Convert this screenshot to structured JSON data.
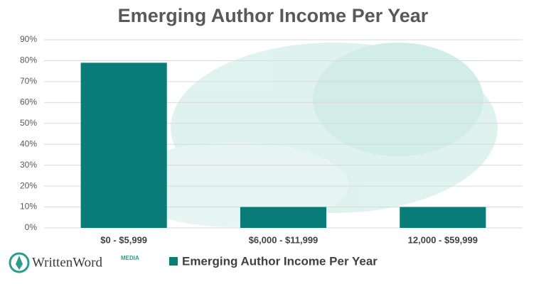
{
  "chart_data": {
    "type": "bar",
    "title": "Emerging Author Income Per Year",
    "categories": [
      "$0 - $5,999",
      "$6,000 - $11,999",
      "12,000 - $59,999"
    ],
    "series": [
      {
        "name": "Emerging Author Income Per Year",
        "color": "#097b78",
        "values": [
          79,
          10,
          10
        ]
      }
    ],
    "ylim": [
      0,
      90
    ],
    "yticks": [
      {
        "value": 0,
        "label": "0%"
      },
      {
        "value": 10,
        "label": "10%"
      },
      {
        "value": 20,
        "label": "20%"
      },
      {
        "value": 30,
        "label": "30%"
      },
      {
        "value": 40,
        "label": "40%"
      },
      {
        "value": 50,
        "label": "50%"
      },
      {
        "value": 60,
        "label": "60%"
      },
      {
        "value": 70,
        "label": "70%"
      },
      {
        "value": 80,
        "label": "80%"
      },
      {
        "value": 90,
        "label": "90%"
      }
    ],
    "grid": true,
    "legend": "bottom"
  },
  "logo": {
    "name": "WrittenWord",
    "tag": "MEDIA"
  }
}
